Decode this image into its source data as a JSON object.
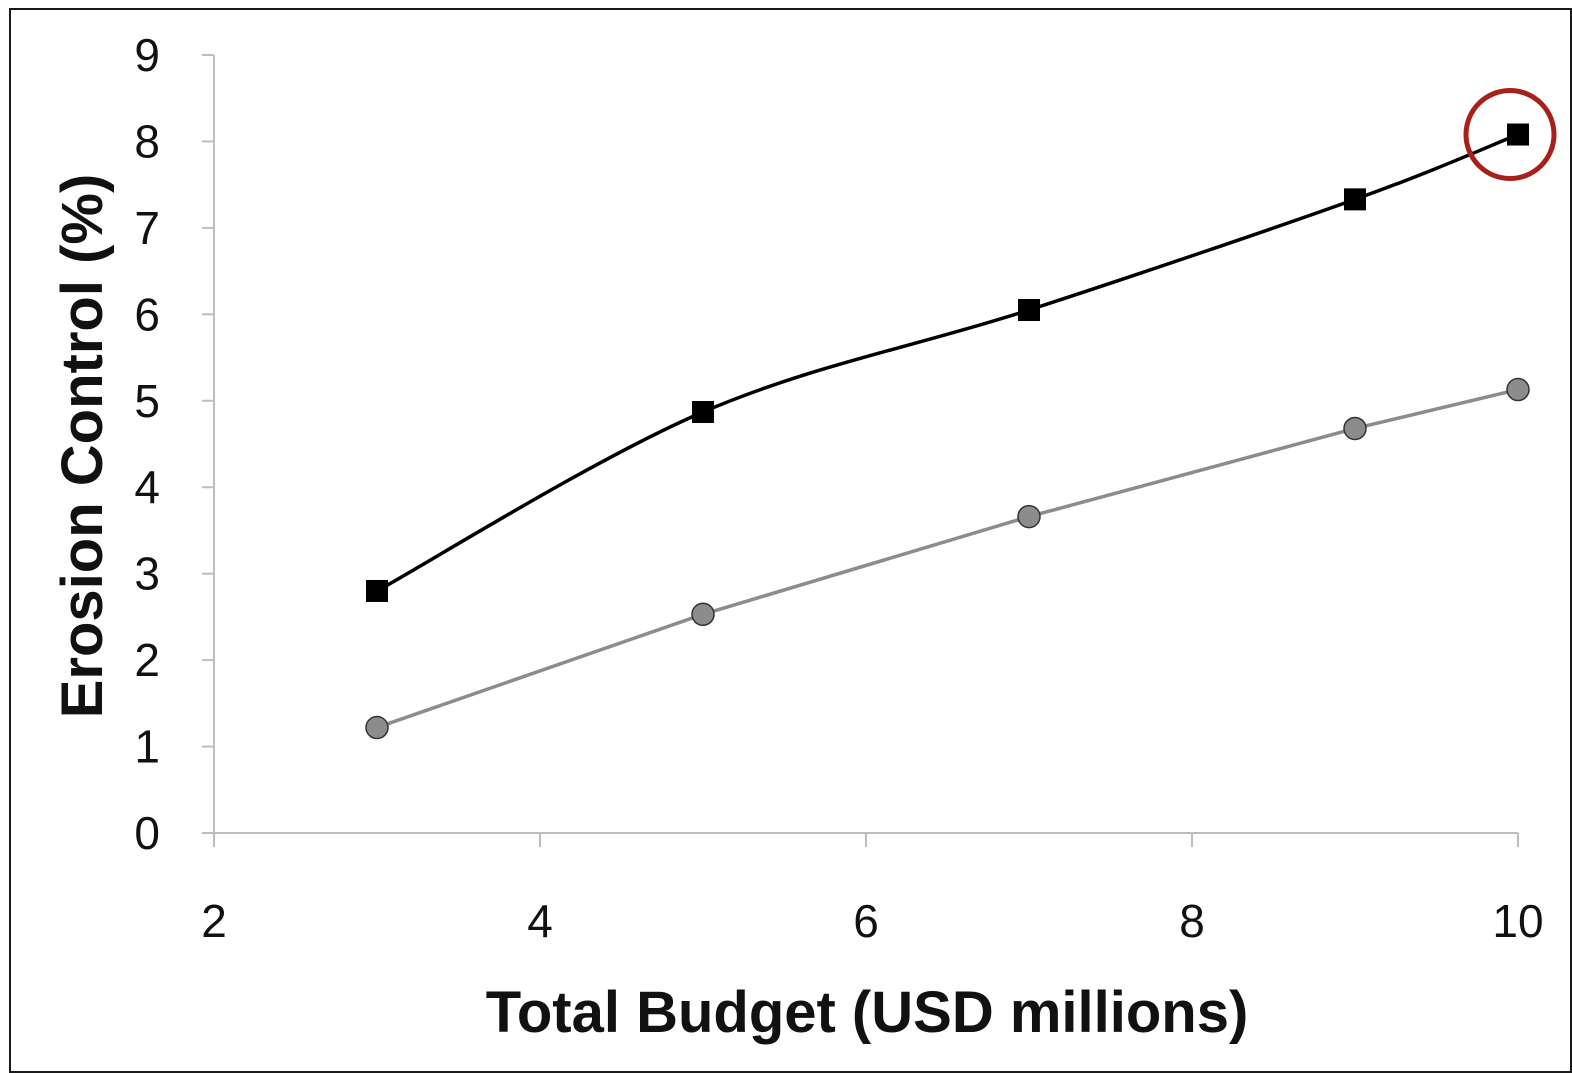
{
  "chart_data": {
    "type": "line",
    "xlabel": "Total Budget (USD millions)",
    "ylabel": "Erosion Control (%)",
    "xlim": [
      2,
      10
    ],
    "ylim": [
      0,
      9
    ],
    "x_ticks": [
      "2",
      "4",
      "6",
      "8",
      "10"
    ],
    "y_ticks": [
      "0",
      "1",
      "2",
      "3",
      "4",
      "5",
      "6",
      "7",
      "8",
      "9"
    ],
    "grid": false,
    "legend": "none",
    "series": [
      {
        "marker": "square",
        "color": "#000000",
        "smooth": true,
        "x": [
          3,
          5,
          7,
          9,
          10
        ],
        "values": [
          2.8,
          4.87,
          6.05,
          7.33,
          8.08
        ]
      },
      {
        "marker": "circle",
        "color": "#8c8c8c",
        "smooth": false,
        "x": [
          3,
          5,
          7,
          9,
          10
        ],
        "values": [
          1.22,
          2.53,
          3.66,
          4.68,
          5.13
        ]
      }
    ],
    "highlight": {
      "series": 0,
      "x": 10,
      "value": 8.08,
      "shape": "circle",
      "color": "#a8201a"
    }
  }
}
